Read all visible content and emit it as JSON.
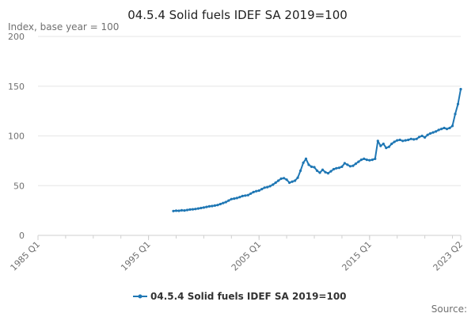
{
  "chart_data": {
    "type": "line",
    "title": "04.5.4 Solid fuels IDEF SA 2019=100",
    "unit_label": "Index, base year = 100",
    "y_ticks": [
      0,
      50,
      100,
      150,
      200
    ],
    "ylim": [
      0,
      200
    ],
    "x_range": [
      1985.0,
      2023.25
    ],
    "x_tick_labels": [
      {
        "label": "1985 Q1",
        "x": 1985.0
      },
      {
        "label": "1995 Q1",
        "x": 1995.0
      },
      {
        "label": "2005 Q1",
        "x": 2005.0
      },
      {
        "label": "2015 Q1",
        "x": 2015.0
      },
      {
        "label": "2023 Q2",
        "x": 2023.25
      }
    ],
    "x_minor_ticks_every_years": 2.5,
    "grid": "horizontal",
    "legend_position": "bottom",
    "series": [
      {
        "name": "04.5.4 Solid fuels IDEF SA 2019=100",
        "color": "#1f77b4",
        "points": [
          [
            1997.25,
            24.5
          ],
          [
            1997.5,
            24.8
          ],
          [
            1997.75,
            24.7
          ],
          [
            1998.0,
            25.2
          ],
          [
            1998.25,
            25.0
          ],
          [
            1998.5,
            25.5
          ],
          [
            1998.75,
            26.0
          ],
          [
            1999.0,
            26.2
          ],
          [
            1999.25,
            26.5
          ],
          [
            1999.5,
            27.0
          ],
          [
            1999.75,
            27.5
          ],
          [
            2000.0,
            28.0
          ],
          [
            2000.25,
            28.6
          ],
          [
            2000.5,
            29.2
          ],
          [
            2000.75,
            29.5
          ],
          [
            2001.0,
            30.0
          ],
          [
            2001.25,
            30.5
          ],
          [
            2001.5,
            31.5
          ],
          [
            2001.75,
            32.5
          ],
          [
            2002.0,
            33.5
          ],
          [
            2002.25,
            35.0
          ],
          [
            2002.5,
            36.5
          ],
          [
            2002.75,
            37.0
          ],
          [
            2003.0,
            37.5
          ],
          [
            2003.25,
            38.5
          ],
          [
            2003.5,
            39.5
          ],
          [
            2003.75,
            40.0
          ],
          [
            2004.0,
            40.5
          ],
          [
            2004.25,
            42.0
          ],
          [
            2004.5,
            43.5
          ],
          [
            2004.75,
            44.5
          ],
          [
            2005.0,
            45.0
          ],
          [
            2005.25,
            46.5
          ],
          [
            2005.5,
            48.0
          ],
          [
            2005.75,
            48.5
          ],
          [
            2006.0,
            49.5
          ],
          [
            2006.25,
            51.0
          ],
          [
            2006.5,
            53.0
          ],
          [
            2006.75,
            55.0
          ],
          [
            2007.0,
            57.0
          ],
          [
            2007.25,
            57.5
          ],
          [
            2007.5,
            56.0
          ],
          [
            2007.75,
            53.0
          ],
          [
            2008.0,
            54.0
          ],
          [
            2008.25,
            55.0
          ],
          [
            2008.5,
            58.0
          ],
          [
            2008.75,
            65.0
          ],
          [
            2009.0,
            73.0
          ],
          [
            2009.25,
            77.0
          ],
          [
            2009.5,
            71.0
          ],
          [
            2009.75,
            69.0
          ],
          [
            2010.0,
            68.5
          ],
          [
            2010.25,
            65.0
          ],
          [
            2010.5,
            63.0
          ],
          [
            2010.75,
            66.0
          ],
          [
            2011.0,
            63.5
          ],
          [
            2011.25,
            62.5
          ],
          [
            2011.5,
            64.5
          ],
          [
            2011.75,
            66.5
          ],
          [
            2012.0,
            67.5
          ],
          [
            2012.25,
            68.0
          ],
          [
            2012.5,
            69.0
          ],
          [
            2012.75,
            72.5
          ],
          [
            2013.0,
            71.0
          ],
          [
            2013.25,
            69.5
          ],
          [
            2013.5,
            70.0
          ],
          [
            2013.75,
            72.0
          ],
          [
            2014.0,
            74.0
          ],
          [
            2014.25,
            76.0
          ],
          [
            2014.5,
            77.0
          ],
          [
            2014.75,
            76.0
          ],
          [
            2015.0,
            75.5
          ],
          [
            2015.25,
            76.0
          ],
          [
            2015.5,
            77.0
          ],
          [
            2015.75,
            95.0
          ],
          [
            2016.0,
            90.0
          ],
          [
            2016.25,
            92.0
          ],
          [
            2016.5,
            88.0
          ],
          [
            2016.75,
            89.0
          ],
          [
            2017.0,
            92.0
          ],
          [
            2017.25,
            94.0
          ],
          [
            2017.5,
            95.5
          ],
          [
            2017.75,
            96.0
          ],
          [
            2018.0,
            95.0
          ],
          [
            2018.25,
            95.5
          ],
          [
            2018.5,
            96.0
          ],
          [
            2018.75,
            97.0
          ],
          [
            2019.0,
            96.5
          ],
          [
            2019.25,
            97.0
          ],
          [
            2019.5,
            99.0
          ],
          [
            2019.75,
            100.0
          ],
          [
            2020.0,
            98.5
          ],
          [
            2020.25,
            101.0
          ],
          [
            2020.5,
            102.5
          ],
          [
            2020.75,
            103.5
          ],
          [
            2021.0,
            104.5
          ],
          [
            2021.25,
            106.0
          ],
          [
            2021.5,
            107.0
          ],
          [
            2021.75,
            108.0
          ],
          [
            2022.0,
            107.0
          ],
          [
            2022.25,
            108.0
          ],
          [
            2022.5,
            110.0
          ],
          [
            2022.75,
            122.0
          ],
          [
            2023.0,
            132.0
          ],
          [
            2023.25,
            147.0
          ]
        ]
      }
    ],
    "source_label": "Source:"
  }
}
